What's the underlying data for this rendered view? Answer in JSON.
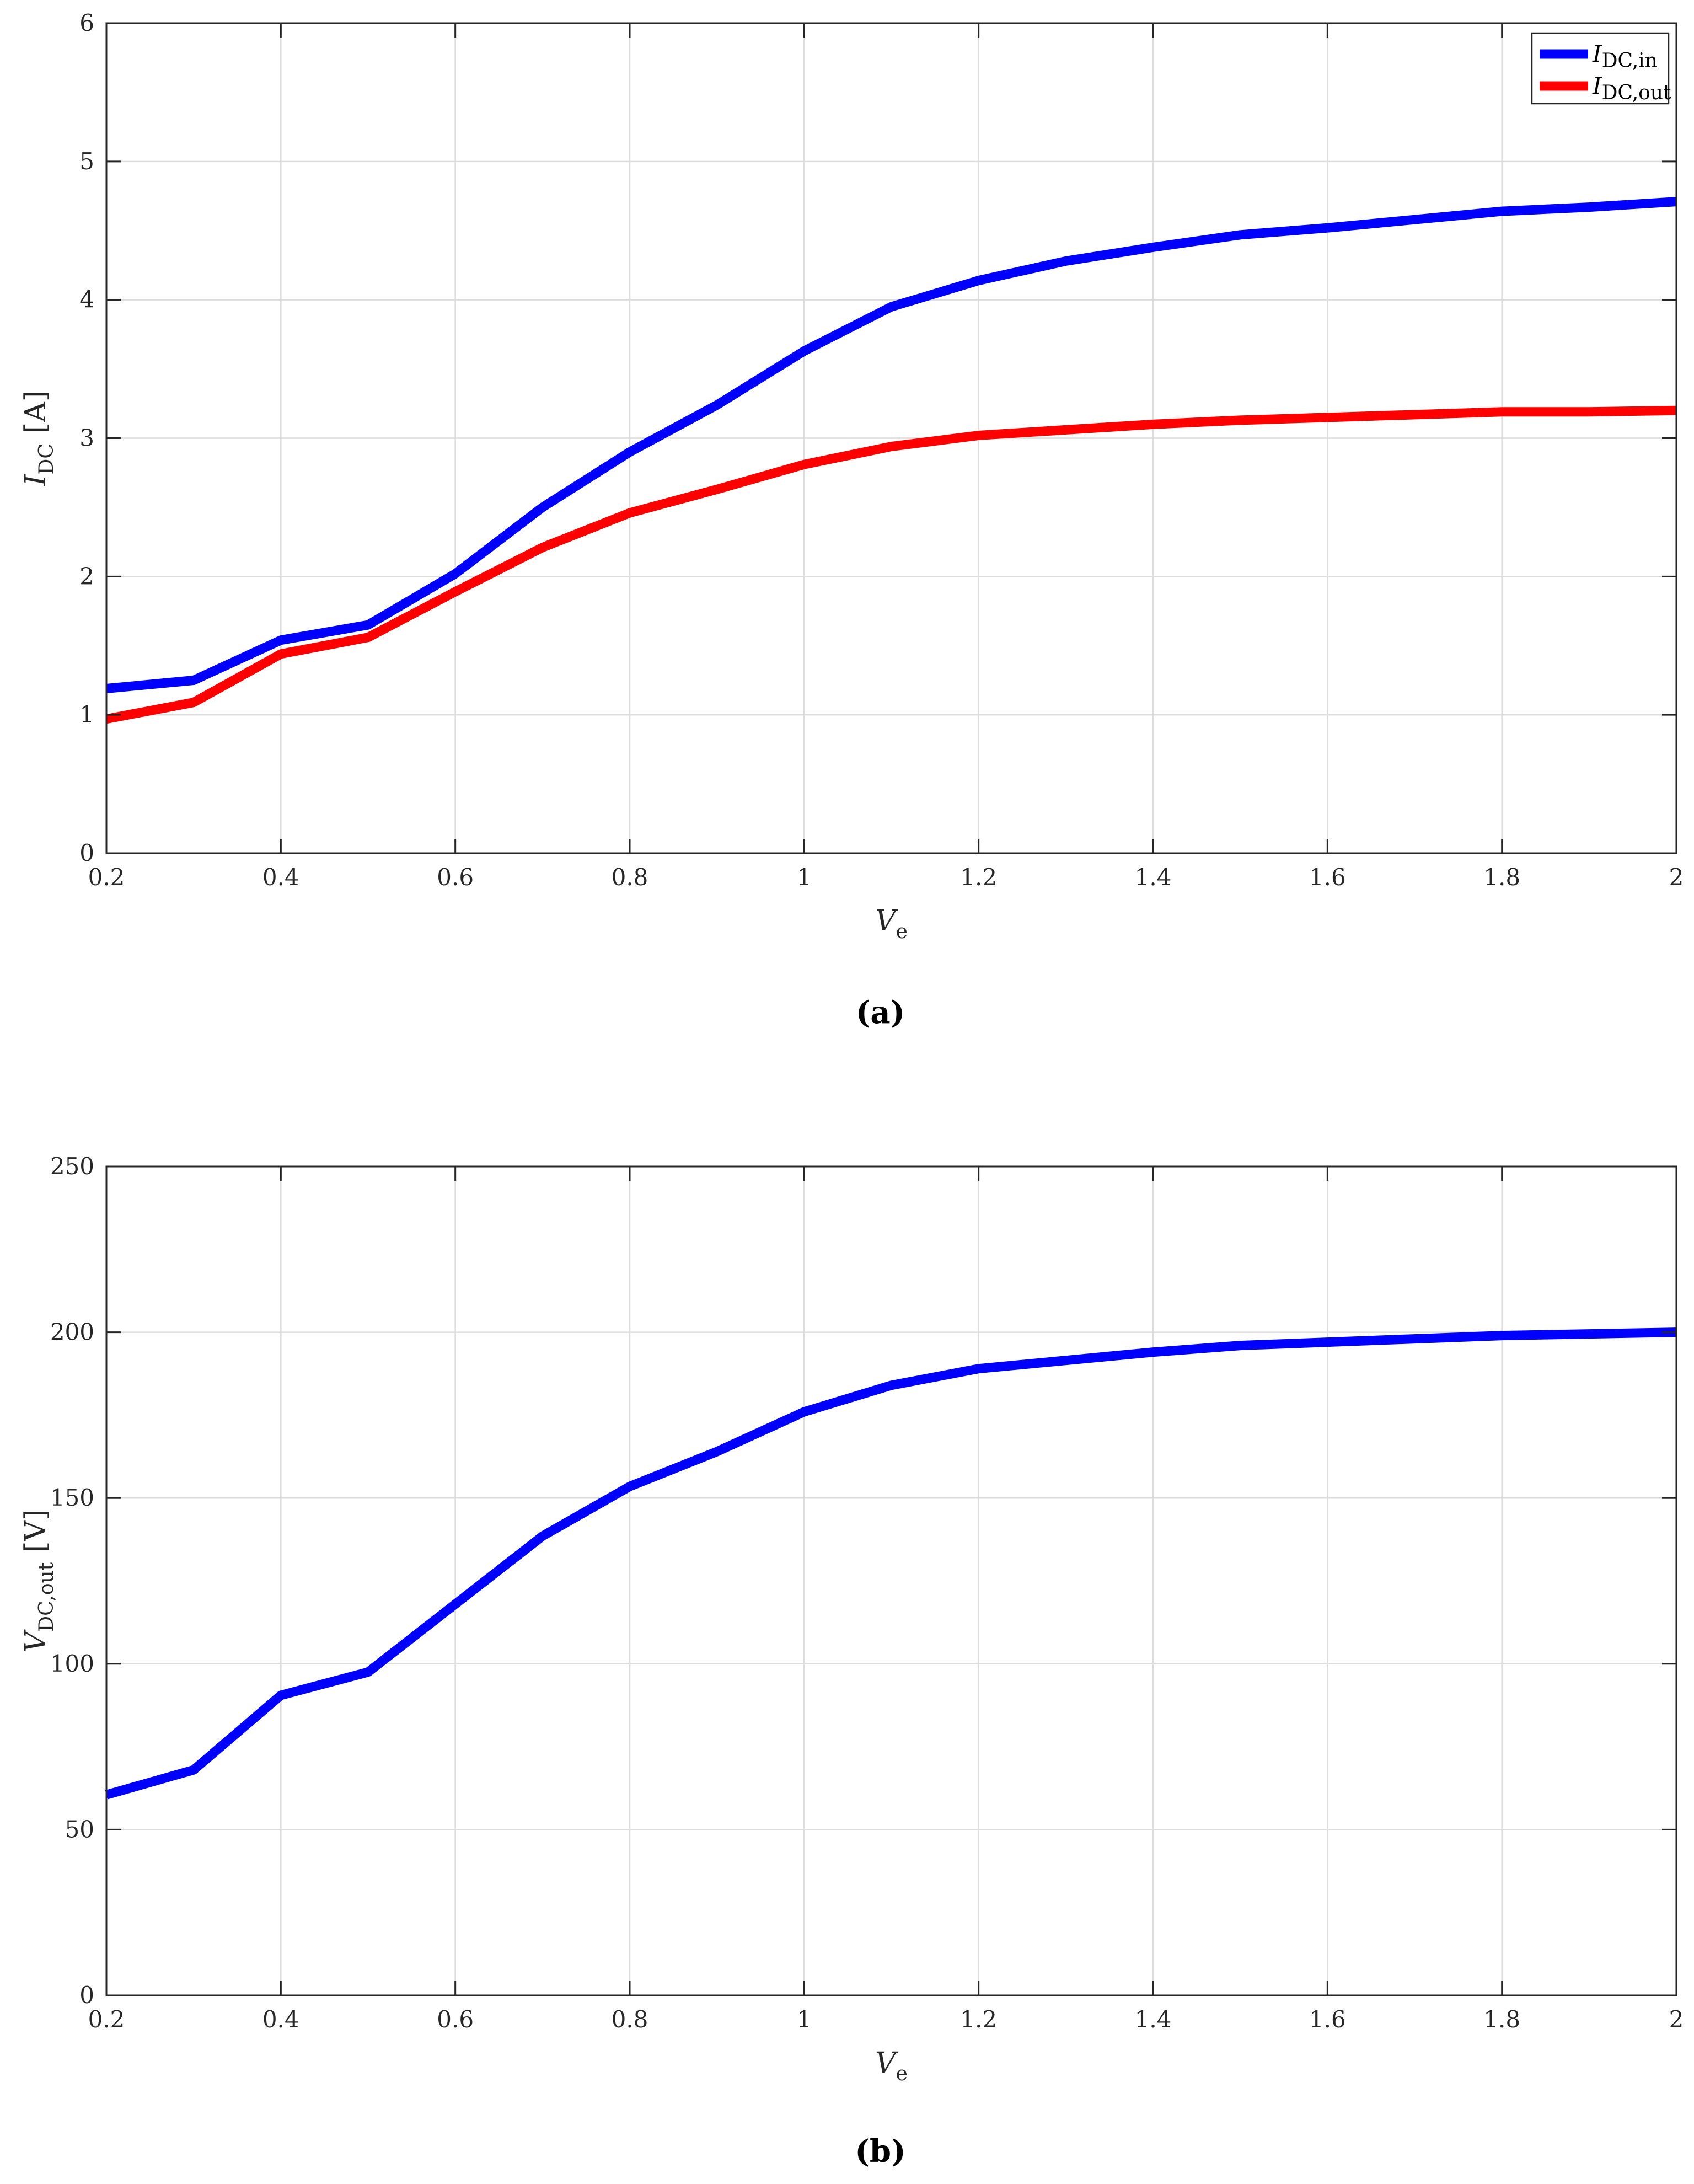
{
  "chart_data": [
    {
      "type": "line",
      "caption": "(a)",
      "xlabel": {
        "main": "V",
        "sub": "e"
      },
      "ylabel": {
        "main": "I",
        "sub": "DC",
        "unit": "[A]"
      },
      "xlim": [
        0.2,
        2
      ],
      "ylim": [
        0,
        6
      ],
      "xticks": [
        "0.2",
        "0.4",
        "0.6",
        "0.8",
        "1",
        "1.2",
        "1.4",
        "1.6",
        "1.8",
        "2"
      ],
      "yticks": [
        "0",
        "1",
        "2",
        "3",
        "4",
        "5",
        "6"
      ],
      "grid": true,
      "legend_position": "top-right",
      "x": [
        0.2,
        0.3,
        0.4,
        0.5,
        0.6,
        0.7,
        0.8,
        0.9,
        1.0,
        1.1,
        1.2,
        1.3,
        1.4,
        1.5,
        1.6,
        1.7,
        1.8,
        1.9,
        2.0
      ],
      "series": [
        {
          "name_main": "I",
          "name_sub": "DC,in",
          "color": "#0000ff",
          "values": [
            1.19,
            1.25,
            1.54,
            1.65,
            2.02,
            2.5,
            2.9,
            3.24,
            3.63,
            3.95,
            4.14,
            4.28,
            4.38,
            4.47,
            4.52,
            4.58,
            4.64,
            4.67,
            4.71
          ]
        },
        {
          "name_main": "I",
          "name_sub": "DC,out",
          "color": "#ff0000",
          "values": [
            0.97,
            1.09,
            1.44,
            1.56,
            1.89,
            2.21,
            2.46,
            2.63,
            2.81,
            2.94,
            3.02,
            3.06,
            3.1,
            3.13,
            3.15,
            3.17,
            3.19,
            3.19,
            3.2
          ]
        }
      ]
    },
    {
      "type": "line",
      "caption": "(b)",
      "xlabel": {
        "main": "V",
        "sub": "e"
      },
      "ylabel": {
        "main": "V",
        "sub": "DC,out",
        "unit": "[V]"
      },
      "xlim": [
        0.2,
        2
      ],
      "ylim": [
        0,
        250
      ],
      "xticks": [
        "0.2",
        "0.4",
        "0.6",
        "0.8",
        "1",
        "1.2",
        "1.4",
        "1.6",
        "1.8",
        "2"
      ],
      "yticks": [
        "0",
        "50",
        "100",
        "150",
        "200",
        "250"
      ],
      "grid": true,
      "x": [
        0.2,
        0.3,
        0.4,
        0.5,
        0.6,
        0.7,
        0.8,
        0.9,
        1.0,
        1.1,
        1.2,
        1.3,
        1.4,
        1.5,
        1.6,
        1.7,
        1.8,
        1.9,
        2.0
      ],
      "series": [
        {
          "color": "#0000ff",
          "values": [
            60.5,
            68.0,
            90.5,
            97.5,
            118,
            138.5,
            153.5,
            164,
            176,
            184,
            189,
            191.5,
            194,
            196,
            197,
            198,
            199,
            199.5,
            200
          ]
        }
      ]
    }
  ]
}
